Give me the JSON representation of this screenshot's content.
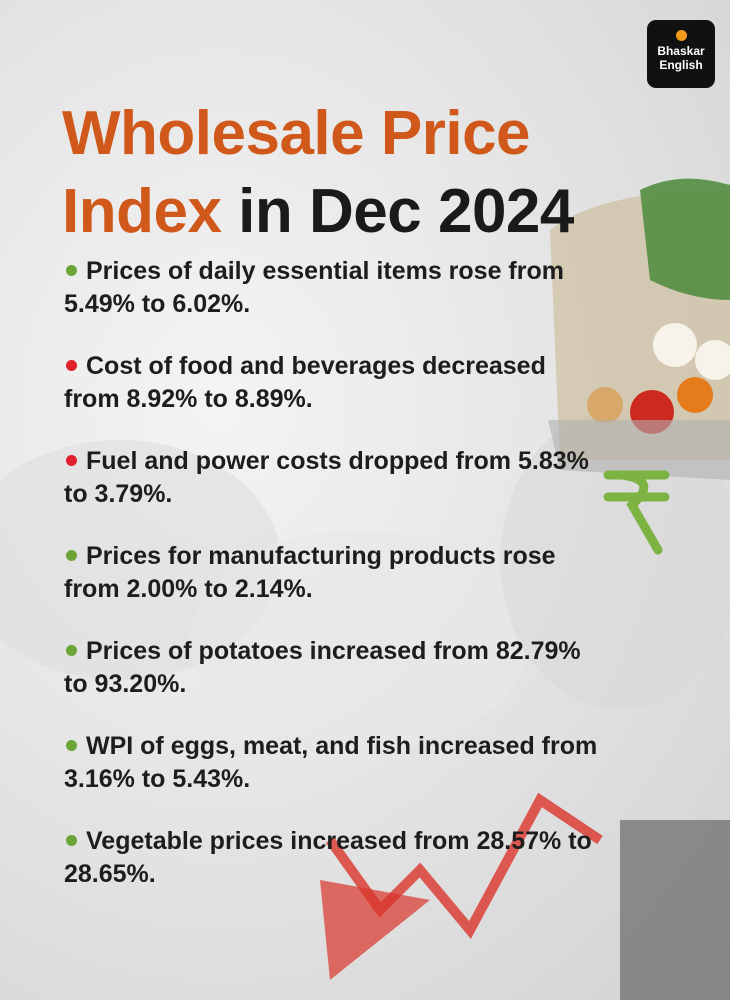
{
  "logo": {
    "line1": "Bhaskar",
    "line2": "English"
  },
  "title": {
    "highlight": "Wholesale Price Index",
    "rest": "in Dec 2024"
  },
  "items": [
    {
      "text": "Prices of daily essential items rose from 5.49% to 6.02%.",
      "color": "#6aa535"
    },
    {
      "text": "Cost of food and beverages decreased from 8.92% to 8.89%.",
      "color": "#e0202a"
    },
    {
      "text": "Fuel and power costs dropped from 5.83% to 3.79%.",
      "color": "#e0202a"
    },
    {
      "text": "Prices for manufacturing products rose from 2.00% to 2.14%.",
      "color": "#6aa535"
    },
    {
      "text": "Prices of potatoes increased from 82.79% to 93.20%.",
      "color": "#6aa535"
    },
    {
      "text": "WPI of eggs, meat, and fish increased from 3.16% to 5.43%.",
      "color": "#6aa535"
    },
    {
      "text": "Vegetable prices increased from 28.57% to 28.65%.",
      "color": "#6aa535"
    }
  ]
}
